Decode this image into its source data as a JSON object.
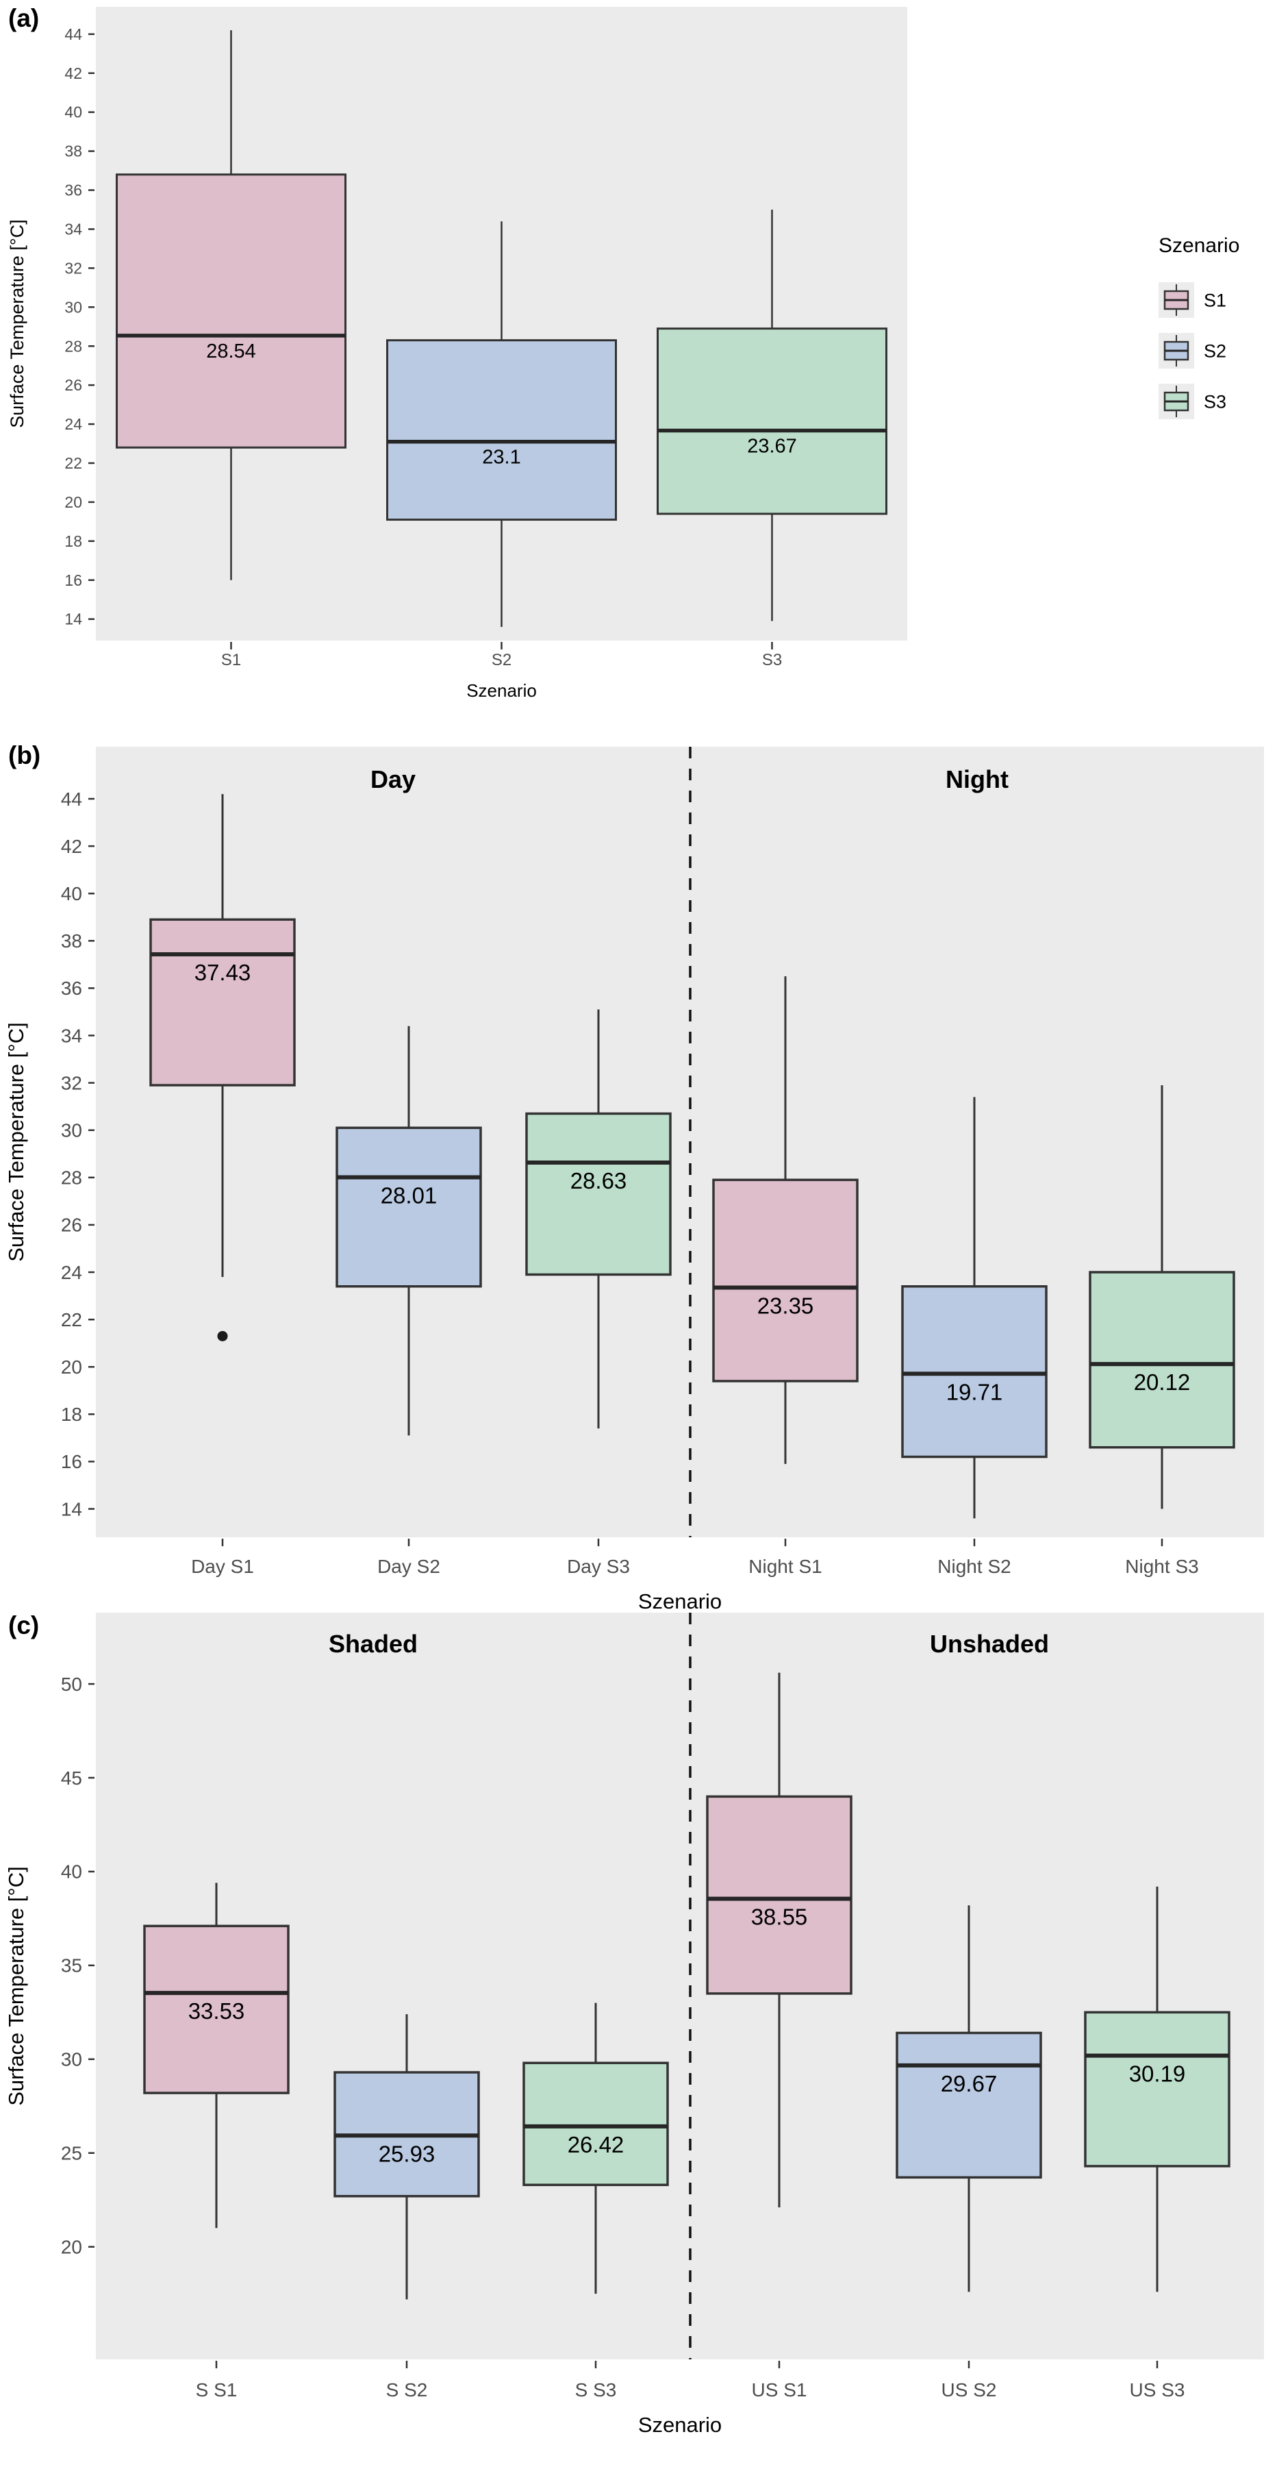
{
  "colors": {
    "S1": "#DEBECB",
    "S2": "#B9CAE2",
    "S3": "#BCDECB",
    "panel_bg": "#EBEBEB",
    "legend_key_bg": "#ECECEC",
    "box_border": "#333333",
    "median_line": "#262626",
    "whisker": "#333333",
    "tick_text": "#4D4D4D",
    "outlier": "#1A1A1A",
    "divider": "#111111"
  },
  "chart_data": [
    {
      "type": "boxplot",
      "id": "a",
      "panel_label": "(a)",
      "xlabel": "Szenario",
      "ylabel": "Surface Temperature [°C]",
      "ylim": [
        12.9,
        45.4
      ],
      "yticks": [
        14,
        16,
        18,
        20,
        22,
        24,
        26,
        28,
        30,
        32,
        34,
        36,
        38,
        40,
        42,
        44
      ],
      "grid": false,
      "categories": [
        "S1",
        "S2",
        "S3"
      ],
      "series": [
        {
          "category": "S1",
          "group": "S1",
          "whisker_low": 16.0,
          "q1": 22.8,
          "median": 28.54,
          "median_label": "28.54",
          "q3": 36.8,
          "whisker_high": 44.2
        },
        {
          "category": "S2",
          "group": "S2",
          "whisker_low": 13.6,
          "q1": 19.1,
          "median": 23.1,
          "median_label": "23.1",
          "q3": 28.3,
          "whisker_high": 34.4
        },
        {
          "category": "S3",
          "group": "S3",
          "whisker_low": 13.9,
          "q1": 19.4,
          "median": 23.67,
          "median_label": "23.67",
          "q3": 28.9,
          "whisker_high": 35.0
        }
      ],
      "legend": {
        "title": "Szenario",
        "position": "right",
        "items": [
          {
            "label": "S1",
            "color_key": "S1"
          },
          {
            "label": "S2",
            "color_key": "S2"
          },
          {
            "label": "S3",
            "color_key": "S3"
          }
        ]
      }
    },
    {
      "type": "boxplot",
      "id": "b",
      "panel_label": "(b)",
      "xlabel": "Szenario",
      "ylabel": "Surface Temperature [°C]",
      "ylim": [
        12.8,
        46.2
      ],
      "yticks": [
        14,
        16,
        18,
        20,
        22,
        24,
        26,
        28,
        30,
        32,
        34,
        36,
        38,
        40,
        42,
        44
      ],
      "grid": false,
      "facets": [
        {
          "title": "Day"
        },
        {
          "title": "Night"
        }
      ],
      "facet_divider": "dashed",
      "categories": [
        "Day S1",
        "Day S2",
        "Day S3",
        "Night S1",
        "Night S2",
        "Night S3"
      ],
      "series": [
        {
          "category": "Day S1",
          "group": "S1",
          "facet": 0,
          "whisker_low": 23.8,
          "q1": 31.9,
          "median": 37.43,
          "median_label": "37.43",
          "q3": 38.9,
          "whisker_high": 44.2
        },
        {
          "category": "Day S2",
          "group": "S2",
          "facet": 0,
          "whisker_low": 17.1,
          "q1": 23.4,
          "median": 28.01,
          "median_label": "28.01",
          "q3": 30.1,
          "whisker_high": 34.4
        },
        {
          "category": "Day S3",
          "group": "S3",
          "facet": 0,
          "whisker_low": 17.4,
          "q1": 23.9,
          "median": 28.63,
          "median_label": "28.63",
          "q3": 30.7,
          "whisker_high": 35.1
        },
        {
          "category": "Night S1",
          "group": "S1",
          "facet": 1,
          "whisker_low": 15.9,
          "q1": 19.4,
          "median": 23.35,
          "median_label": "23.35",
          "q3": 27.9,
          "whisker_high": 36.5
        },
        {
          "category": "Night S2",
          "group": "S2",
          "facet": 1,
          "whisker_low": 13.6,
          "q1": 16.2,
          "median": 19.71,
          "median_label": "19.71",
          "q3": 23.4,
          "whisker_high": 31.4
        },
        {
          "category": "Night S3",
          "group": "S3",
          "facet": 1,
          "whisker_low": 14.0,
          "q1": 16.6,
          "median": 20.12,
          "median_label": "20.12",
          "q3": 24.0,
          "whisker_high": 31.9
        }
      ],
      "outliers": [
        {
          "category": "Day S1",
          "value": 21.3
        }
      ]
    },
    {
      "type": "boxplot",
      "id": "c",
      "panel_label": "(c)",
      "xlabel": "Szenario",
      "ylabel": "Surface Temperature [°C]",
      "ylim": [
        14.0,
        53.8
      ],
      "yticks": [
        20,
        25,
        30,
        35,
        40,
        45,
        50
      ],
      "grid": false,
      "facets": [
        {
          "title": "Shaded"
        },
        {
          "title": "Unshaded"
        }
      ],
      "facet_divider": "dashed",
      "categories": [
        "S S1",
        "S S2",
        "S S3",
        "US S1",
        "US S2",
        "US S3"
      ],
      "series": [
        {
          "category": "S S1",
          "group": "S1",
          "facet": 0,
          "whisker_low": 21.0,
          "q1": 28.2,
          "median": 33.53,
          "median_label": "33.53",
          "q3": 37.1,
          "whisker_high": 39.4
        },
        {
          "category": "S S2",
          "group": "S2",
          "facet": 0,
          "whisker_low": 17.2,
          "q1": 22.7,
          "median": 25.93,
          "median_label": "25.93",
          "q3": 29.3,
          "whisker_high": 32.4
        },
        {
          "category": "S S3",
          "group": "S3",
          "facet": 0,
          "whisker_low": 17.5,
          "q1": 23.3,
          "median": 26.42,
          "median_label": "26.42",
          "q3": 29.8,
          "whisker_high": 33.0
        },
        {
          "category": "US S1",
          "group": "S1",
          "facet": 1,
          "whisker_low": 22.1,
          "q1": 33.5,
          "median": 38.55,
          "median_label": "38.55",
          "q3": 44.0,
          "whisker_high": 50.6
        },
        {
          "category": "US S2",
          "group": "S2",
          "facet": 1,
          "whisker_low": 17.6,
          "q1": 23.7,
          "median": 29.67,
          "median_label": "29.67",
          "q3": 31.4,
          "whisker_high": 38.2
        },
        {
          "category": "US S3",
          "group": "S3",
          "facet": 1,
          "whisker_low": 17.6,
          "q1": 24.3,
          "median": 30.19,
          "median_label": "30.19",
          "q3": 32.5,
          "whisker_high": 39.2
        }
      ]
    }
  ]
}
